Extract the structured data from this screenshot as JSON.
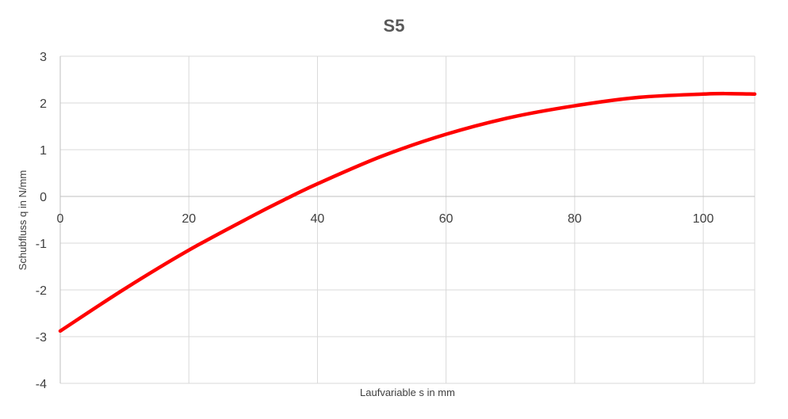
{
  "chart_data": {
    "type": "line",
    "title": "S5",
    "xlabel": "Laufvariable s in mm",
    "ylabel": "Schubfluss q in N/mm",
    "xlim": [
      0,
      108
    ],
    "ylim": [
      -4,
      3
    ],
    "x_ticks": [
      0,
      20,
      40,
      60,
      80,
      100
    ],
    "y_ticks": [
      3,
      2,
      1,
      0,
      -1,
      -2,
      -3,
      -4
    ],
    "grid": true,
    "legend": "none",
    "series": [
      {
        "color": "#ff0000",
        "x": [
          0,
          10,
          20,
          30,
          35,
          40,
          50,
          60,
          70,
          80,
          90,
          100,
          104,
          108
        ],
        "y": [
          -2.88,
          -1.98,
          -1.15,
          -0.41,
          -0.06,
          0.27,
          0.86,
          1.33,
          1.69,
          1.94,
          2.12,
          2.19,
          2.2,
          2.19
        ]
      }
    ]
  }
}
